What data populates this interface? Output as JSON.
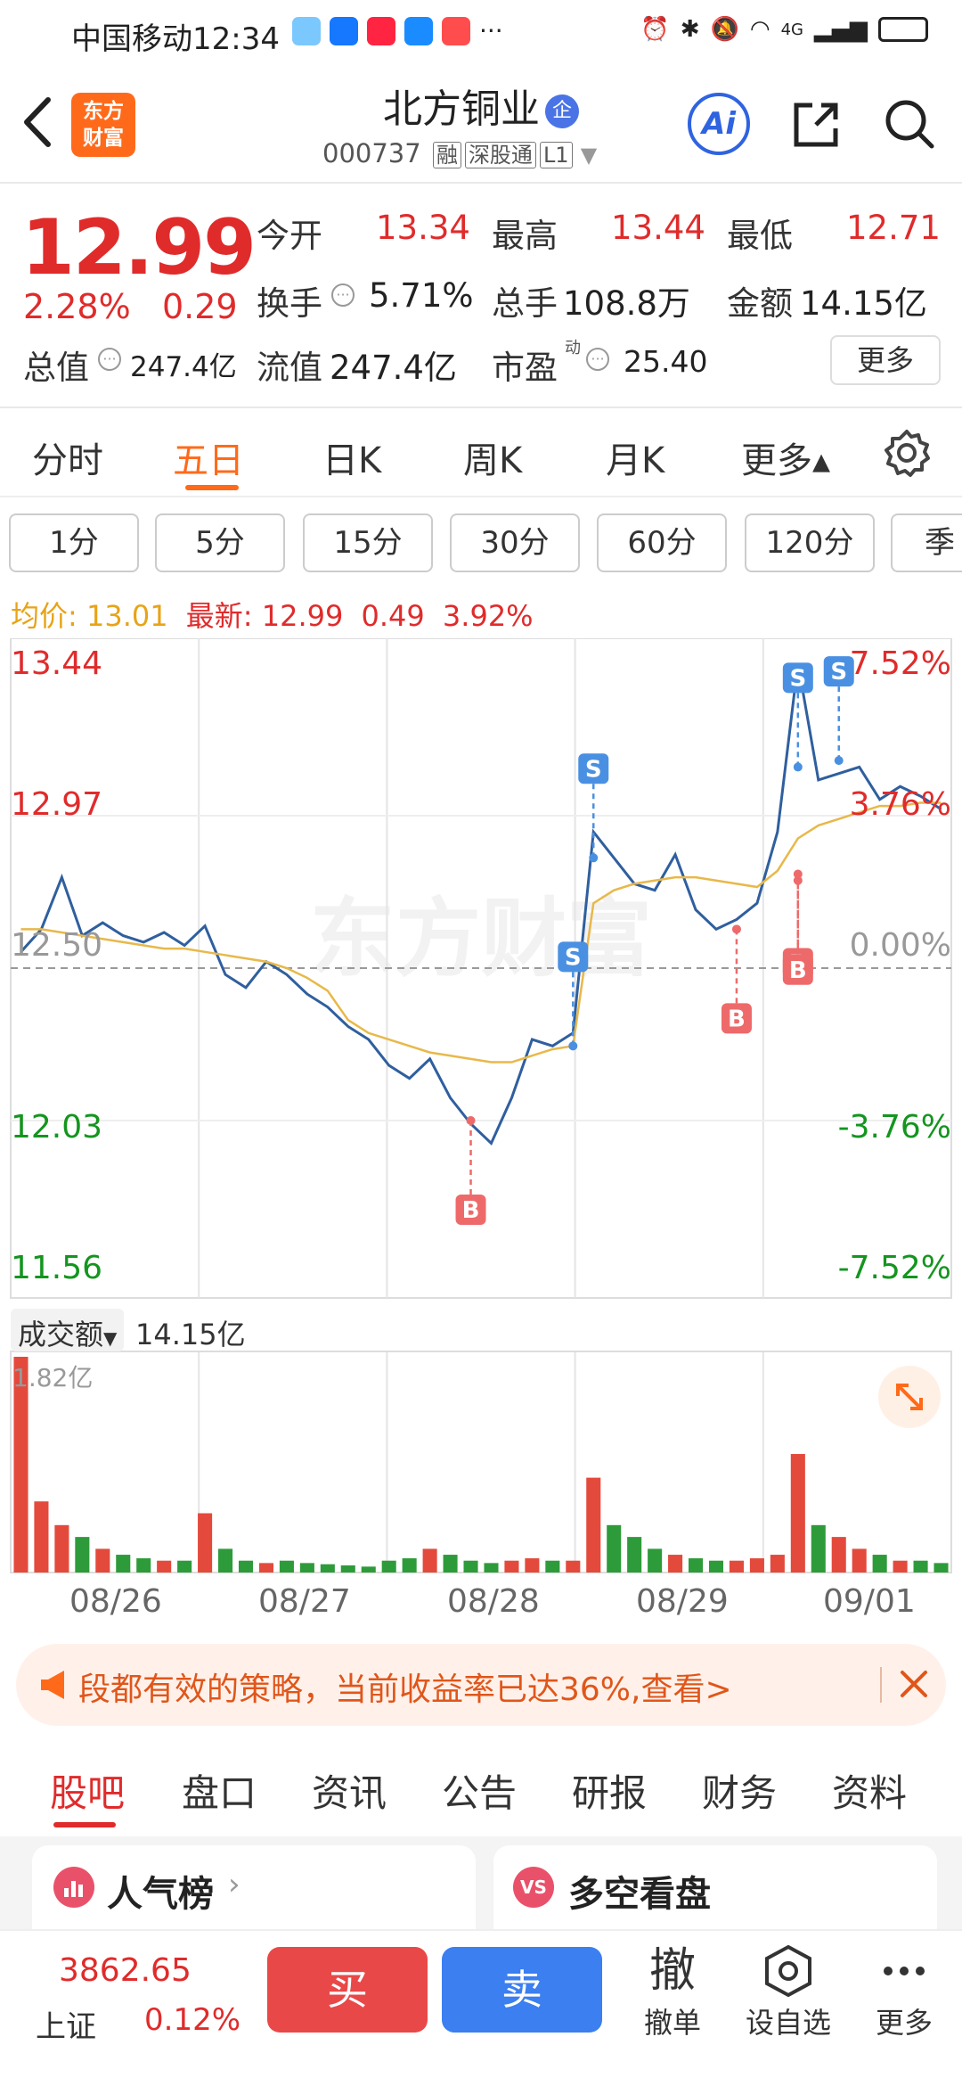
{
  "status_bar": {
    "carrier": "中国移动",
    "time": "12:34",
    "more": "···",
    "network": "4G"
  },
  "header": {
    "title": "北方铜业",
    "title_badge": "企",
    "code": "000737",
    "tags": [
      "融",
      "深股通",
      "L1"
    ],
    "logo_line1": "东方",
    "logo_line2": "财富",
    "ai_label": "Ai"
  },
  "quote": {
    "price": "12.99",
    "change_pct": "2.28%",
    "change": "0.29",
    "stats": [
      {
        "label": "今开",
        "value": "13.34",
        "color": "red"
      },
      {
        "label": "最高",
        "value": "13.44",
        "color": "red"
      },
      {
        "label": "最低",
        "value": "12.71",
        "color": "red"
      },
      {
        "label": "换手",
        "value": "5.71%",
        "color": "dark"
      },
      {
        "label": "总手",
        "value": "108.8万",
        "color": "dark"
      },
      {
        "label": "金额",
        "value": "14.15亿",
        "color": "dark"
      },
      {
        "label": "总值",
        "value": "247.4亿",
        "color": "dark"
      },
      {
        "label": "流值",
        "value": "247.4亿",
        "color": "dark"
      },
      {
        "label": "市盈",
        "value": "25.40",
        "color": "dark"
      }
    ],
    "pe_superscript": "动",
    "more_label": "更多"
  },
  "tabs": [
    "分时",
    "五日",
    "日K",
    "周K",
    "月K",
    "更多▴"
  ],
  "active_tab": "五日",
  "periods": [
    "1分",
    "5分",
    "15分",
    "30分",
    "60分",
    "120分",
    "季"
  ],
  "legend": {
    "avg_label": "均价:",
    "avg_value": "13.01",
    "latest_label": "最新:",
    "latest_value": "12.99",
    "latest_change": "0.49",
    "latest_pct": "3.92%"
  },
  "chart_data": {
    "type": "line",
    "y_left_ticks": [
      "13.44",
      "12.97",
      "12.50",
      "12.03",
      "11.56"
    ],
    "y_right_ticks": [
      "7.52%",
      "3.76%",
      "0.00%",
      "-3.76%",
      "-7.52%"
    ],
    "ylim": [
      11.56,
      13.44
    ],
    "x_tick_labels": [
      "08/26",
      "08/27",
      "08/28",
      "08/29",
      "09/01"
    ],
    "watermark": "东方财富",
    "series": [
      {
        "name": "price",
        "values": [
          12.55,
          12.62,
          12.78,
          12.6,
          12.64,
          12.6,
          12.58,
          12.61,
          12.57,
          12.63,
          12.48,
          12.44,
          12.52,
          12.48,
          12.42,
          12.38,
          12.32,
          12.28,
          12.2,
          12.16,
          12.22,
          12.1,
          12.02,
          11.96,
          12.1,
          12.28,
          12.26,
          12.3,
          12.92,
          12.84,
          12.76,
          12.74,
          12.85,
          12.68,
          12.62,
          12.65,
          12.7,
          12.92,
          13.44,
          13.08,
          13.1,
          13.12,
          13.02,
          13.06,
          13.03,
          12.99
        ]
      },
      {
        "name": "avg",
        "values": [
          12.62,
          12.62,
          12.61,
          12.6,
          12.59,
          12.58,
          12.57,
          12.56,
          12.56,
          12.55,
          12.54,
          12.53,
          12.52,
          12.5,
          12.47,
          12.43,
          12.34,
          12.3,
          12.28,
          12.26,
          12.24,
          12.23,
          12.22,
          12.21,
          12.21,
          12.23,
          12.25,
          12.26,
          12.7,
          12.74,
          12.76,
          12.77,
          12.78,
          12.78,
          12.77,
          12.76,
          12.75,
          12.8,
          12.9,
          12.94,
          12.96,
          12.98,
          13.0,
          13.0,
          13.01,
          13.01
        ]
      }
    ],
    "markers": [
      {
        "kind": "B",
        "x_index": 22,
        "value": 12.03
      },
      {
        "kind": "S",
        "x_index": 27,
        "value": 12.26
      },
      {
        "kind": "S",
        "x_index": 28,
        "value": 12.84
      },
      {
        "kind": "B",
        "x_index": 35,
        "value": 12.62
      },
      {
        "kind": "B",
        "x_index": 38,
        "value": 12.79
      },
      {
        "kind": "B",
        "x_index": 38,
        "value": 12.77
      },
      {
        "kind": "S",
        "x_index": 38,
        "value": 13.12
      },
      {
        "kind": "S",
        "x_index": 40,
        "value": 13.14
      }
    ],
    "volume": {
      "label": "成交额",
      "total": "14.15亿",
      "max_label": "1.82亿",
      "values": [
        1.82,
        0.6,
        0.4,
        0.3,
        0.2,
        0.15,
        0.12,
        0.1,
        0.1,
        0.5,
        0.2,
        0.1,
        0.08,
        0.1,
        0.08,
        0.07,
        0.06,
        0.05,
        0.1,
        0.12,
        0.2,
        0.15,
        0.1,
        0.08,
        0.1,
        0.12,
        0.1,
        0.1,
        0.8,
        0.4,
        0.3,
        0.2,
        0.15,
        0.12,
        0.1,
        0.1,
        0.12,
        0.15,
        1.0,
        0.4,
        0.3,
        0.2,
        0.15,
        0.1,
        0.1,
        0.08
      ]
    }
  },
  "banner": {
    "text": "段都有效的策略，当前收益率已达36%,查看>"
  },
  "section_tabs": [
    "股吧",
    "盘口",
    "资讯",
    "公告",
    "研报",
    "财务",
    "资料"
  ],
  "active_section": "股吧",
  "cards": [
    {
      "title": "人气榜"
    },
    {
      "title": "多空看盘"
    }
  ],
  "bottom_bar": {
    "index_value": "3862.65",
    "index_name": "上证",
    "index_pct": "0.12%",
    "buy": "买",
    "sell": "卖",
    "cancel_icon": "撤",
    "cancel": "撤单",
    "watchlist": "设自选",
    "more": "更多"
  }
}
